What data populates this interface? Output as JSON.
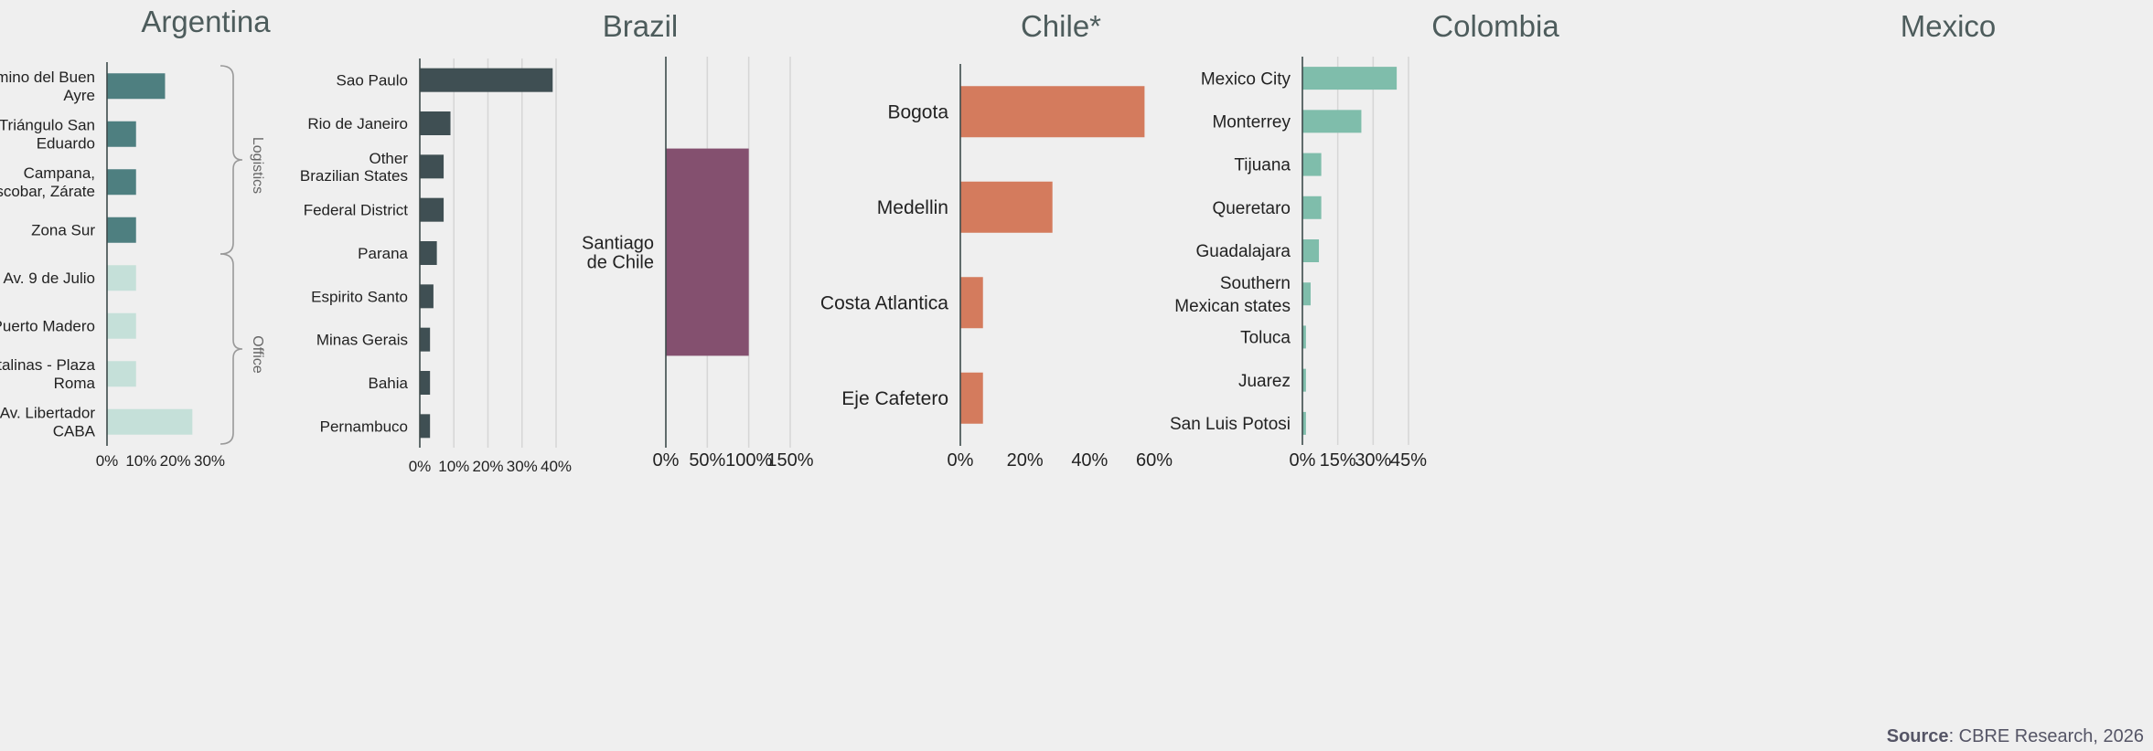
{
  "source": {
    "label": "Source",
    "text": ": CBRE Research, 2026"
  },
  "groups": {
    "logistics": "Logistics",
    "office": "Office"
  },
  "chart_data": [
    {
      "type": "bar",
      "title": "Argentina",
      "color": "#4e7f80",
      "categories": [
        [
          "Camino del Buen",
          "Ayre"
        ],
        [
          "Triángulo San",
          "Eduardo"
        ],
        [
          "Campana,",
          "Escobar, Zárate"
        ],
        [
          "Zona Sur"
        ],
        [
          "Av. 9 de Julio"
        ],
        [
          "Puerto Madero"
        ],
        [
          "Catalinas - Plaza",
          "Roma"
        ],
        [
          "Av. Libertador",
          "CABA"
        ]
      ],
      "values": [
        17,
        8.5,
        8.5,
        8.5,
        8.5,
        8.5,
        8.5,
        25
      ],
      "bar_colors": [
        "#4e7f80",
        "#4e7f80",
        "#4e7f80",
        "#4e7f80",
        "#c5e0d9",
        "#c5e0d9",
        "#c5e0d9",
        "#c5e0d9"
      ],
      "groups": [
        {
          "label": "Logistics",
          "range": [
            0,
            3
          ]
        },
        {
          "label": "Office",
          "range": [
            4,
            7
          ]
        }
      ],
      "xlim": [
        0,
        30
      ],
      "ticks": [
        "0%",
        "10%",
        "20%",
        "30%"
      ],
      "grid": false
    },
    {
      "type": "bar",
      "title": "Brazil",
      "color": "#3f4f53",
      "categories": [
        [
          "Sao Paulo"
        ],
        [
          "Rio de Janeiro"
        ],
        [
          "Other",
          "Brazilian States"
        ],
        [
          "Federal District"
        ],
        [
          "Parana"
        ],
        [
          "Espirito Santo"
        ],
        [
          "Minas Gerais"
        ],
        [
          "Bahia"
        ],
        [
          "Pernambuco"
        ]
      ],
      "values": [
        39,
        9,
        7,
        7,
        5,
        4,
        3,
        3,
        3
      ],
      "xlim": [
        0,
        40
      ],
      "ticks": [
        "0%",
        "10%",
        "20%",
        "30%",
        "40%"
      ],
      "grid": true
    },
    {
      "type": "bar",
      "title": "Chile*",
      "color": "#84506f",
      "categories": [
        [
          "Santiago",
          "de Chile"
        ]
      ],
      "values": [
        100
      ],
      "xlim": [
        0,
        150
      ],
      "ticks": [
        "0%",
        "50%",
        "100%",
        "150%"
      ],
      "grid": true
    },
    {
      "type": "bar",
      "title": "Colombia",
      "color": "#d47b5d",
      "categories": [
        [
          "Bogota"
        ],
        [
          "Medellin"
        ],
        [
          "Costa Atlantica"
        ],
        [
          "Eje Cafetero"
        ]
      ],
      "values": [
        57,
        28.5,
        7,
        7
      ],
      "xlim": [
        0,
        60
      ],
      "ticks": [
        "0%",
        "20%",
        "40%",
        "60%"
      ],
      "grid": false
    },
    {
      "type": "bar",
      "title": "Mexico",
      "color": "#7fbdab",
      "categories": [
        [
          "Mexico City"
        ],
        [
          "Monterrey"
        ],
        [
          "Tijuana"
        ],
        [
          "Queretaro"
        ],
        [
          "Guadalajara"
        ],
        [
          "Southern",
          "Mexican states"
        ],
        [
          "Toluca"
        ],
        [
          "Juarez"
        ],
        [
          "San Luis Potosi"
        ]
      ],
      "values": [
        40,
        25,
        8,
        8,
        7,
        3.5,
        1.5,
        1.5,
        1.5
      ],
      "xlim": [
        0,
        45
      ],
      "ticks": [
        "0%",
        "15%",
        "30%",
        "45%"
      ],
      "grid": true
    }
  ]
}
